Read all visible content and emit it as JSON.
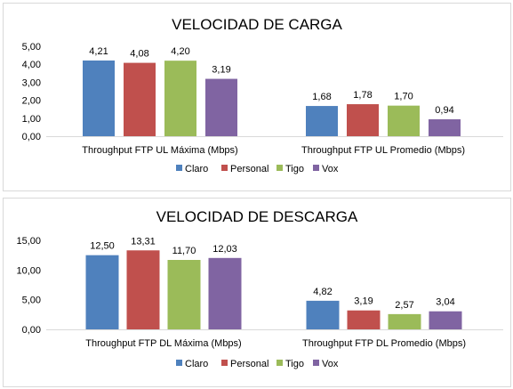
{
  "chart_data": [
    {
      "type": "bar",
      "title": "VELOCIDAD DE CARGA",
      "categories": [
        "Throughput FTP UL Máxima (Mbps)",
        "Throughput FTP UL Promedio (Mbps)"
      ],
      "series": [
        {
          "name": "Claro",
          "color": "#4F81BD",
          "values": [
            4.21,
            1.68
          ],
          "labels": [
            "4,21",
            "1,68"
          ]
        },
        {
          "name": "Personal",
          "color": "#C0504D",
          "values": [
            4.08,
            1.78
          ],
          "labels": [
            "4,08",
            "1,78"
          ]
        },
        {
          "name": "Tigo",
          "color": "#9BBB59",
          "values": [
            4.2,
            1.7
          ],
          "labels": [
            "4,20",
            "1,70"
          ]
        },
        {
          "name": "Vox",
          "color": "#8064A2",
          "values": [
            3.19,
            0.94
          ],
          "labels": [
            "3,19",
            "0,94"
          ]
        }
      ],
      "ylim": [
        0,
        5
      ],
      "yticks": [
        0,
        1,
        2,
        3,
        4,
        5
      ],
      "yticklabels": [
        "0,00",
        "1,00",
        "2,00",
        "3,00",
        "4,00",
        "5,00"
      ],
      "legend": "bottom",
      "grid": false
    },
    {
      "type": "bar",
      "title": "VELOCIDAD DE DESCARGA",
      "categories": [
        "Throughput FTP DL Máxima (Mbps)",
        "Throughput FTP DL Promedio (Mbps)"
      ],
      "series": [
        {
          "name": "Claro",
          "color": "#4F81BD",
          "values": [
            12.5,
            4.82
          ],
          "labels": [
            "12,50",
            "4,82"
          ]
        },
        {
          "name": "Personal",
          "color": "#C0504D",
          "values": [
            13.31,
            3.19
          ],
          "labels": [
            "13,31",
            "3,19"
          ]
        },
        {
          "name": "Tigo",
          "color": "#9BBB59",
          "values": [
            11.7,
            2.57
          ],
          "labels": [
            "11,70",
            "2,57"
          ]
        },
        {
          "name": "Vox",
          "color": "#8064A2",
          "values": [
            12.03,
            3.04
          ],
          "labels": [
            "12,03",
            "3,04"
          ]
        }
      ],
      "ylim": [
        0,
        15
      ],
      "yticks": [
        0,
        5,
        10,
        15
      ],
      "yticklabels": [
        "0,00",
        "5,00",
        "10,00",
        "15,00"
      ],
      "legend": "bottom",
      "grid": false
    }
  ]
}
